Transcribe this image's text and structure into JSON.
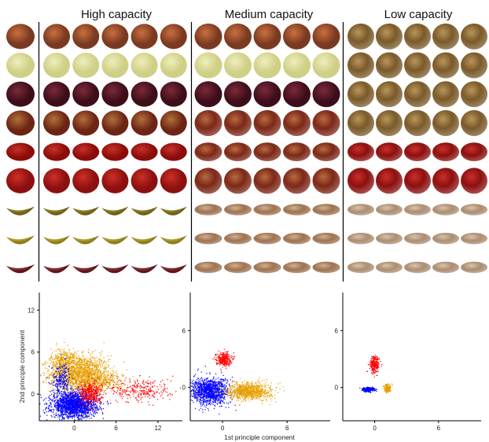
{
  "panels": [
    {
      "title": "High capacity"
    },
    {
      "title": "Medium capacity"
    },
    {
      "title": "Low capacity"
    }
  ],
  "image_grid": {
    "rows": [
      {
        "name": "brown-apple",
        "base": "#7a3a22",
        "accent": "#c9703e"
      },
      {
        "name": "yellow-apple",
        "base": "#cfcf86",
        "accent": "#eeeebc"
      },
      {
        "name": "dark-red-apple",
        "base": "#3e0d1a",
        "accent": "#7a2a3a"
      },
      {
        "name": "mottled-apple",
        "base": "#6c2415",
        "accent": "#b27038"
      },
      {
        "name": "wide-red-fruit",
        "base": "#8a0d0a",
        "accent": "#c8302a"
      },
      {
        "name": "red-apple",
        "base": "#8c1010",
        "accent": "#cc3026"
      },
      {
        "name": "curved-banana",
        "base": "#6d5d18",
        "accent": "#a6942d"
      },
      {
        "name": "banana",
        "base": "#8c7a16",
        "accent": "#c9b742"
      },
      {
        "name": "red-banana",
        "base": "#5a141c",
        "accent": "#a04848"
      }
    ],
    "columns_per_panel": [
      6,
      5,
      5
    ],
    "medium_lowres": {
      "apple": {
        "base": "#7c2818",
        "accent": "#b86a40"
      },
      "banana": {
        "base": "#8c5a34",
        "accent": "#c9a47a"
      }
    },
    "low_lowres": {
      "brown_sphere": {
        "base": "#7a5a2a",
        "accent": "#b8955a"
      },
      "red_sphere": {
        "base": "#8c1010",
        "accent": "#c8302a"
      },
      "banana_blur": {
        "base": "#9c7a5a",
        "accent": "#d4b89c"
      }
    }
  },
  "chart_data": [
    {
      "type": "scatter",
      "panel": "High capacity",
      "xlabel": "",
      "ylabel": "2nd principle component",
      "xlim": [
        -5,
        15.5
      ],
      "ylim": [
        -3.8,
        14.5
      ],
      "xticks": [
        0,
        6,
        12
      ],
      "yticks": [
        0,
        6,
        12
      ],
      "series": [
        {
          "color": "#e69f00",
          "clusters": [
            {
              "cx": 0.8,
              "cy": 2.9,
              "sx": 2.1,
              "sy": 1.3,
              "n": 1700
            },
            {
              "cx": -1.5,
              "cy": 4.8,
              "sx": 0.9,
              "sy": 0.9,
              "n": 300
            },
            {
              "cx": 4.3,
              "cy": 1.7,
              "sx": 1.7,
              "sy": 0.7,
              "n": 250
            }
          ]
        },
        {
          "color": "#0000ff",
          "clusters": [
            {
              "cx": 0.0,
              "cy": -1.6,
              "sx": 1.6,
              "sy": 0.9,
              "n": 1900
            },
            {
              "cx": -1.8,
              "cy": 2.0,
              "sx": 0.7,
              "sy": 1.2,
              "n": 250
            }
          ]
        },
        {
          "color": "#ff0000",
          "clusters": [
            {
              "cx": 2.3,
              "cy": 0.1,
              "sx": 0.8,
              "sy": 0.8,
              "n": 400
            },
            {
              "cx": 9.5,
              "cy": 0.6,
              "sx": 2.3,
              "sy": 0.9,
              "n": 300
            }
          ]
        }
      ]
    },
    {
      "type": "scatter",
      "panel": "Medium capacity",
      "xlabel": "1st principle component",
      "ylabel": "",
      "xlim": [
        -3,
        10
      ],
      "ylim": [
        -3.5,
        10
      ],
      "xticks": [
        0,
        6
      ],
      "yticks": [
        0,
        6
      ],
      "series": [
        {
          "color": "#ff0000",
          "clusters": [
            {
              "cx": 0.1,
              "cy": 3.0,
              "sx": 0.35,
              "sy": 0.35,
              "n": 300
            }
          ]
        },
        {
          "color": "#0000ff",
          "clusters": [
            {
              "cx": -1.2,
              "cy": -0.4,
              "sx": 0.9,
              "sy": 0.7,
              "n": 1200
            }
          ]
        },
        {
          "color": "#e69f00",
          "clusters": [
            {
              "cx": 2.5,
              "cy": -0.4,
              "sx": 1.0,
              "sy": 0.45,
              "n": 900
            }
          ]
        }
      ]
    },
    {
      "type": "scatter",
      "panel": "Low capacity",
      "xlabel": "",
      "ylabel": "",
      "xlim": [
        -3,
        10
      ],
      "ylim": [
        -3.5,
        10
      ],
      "xticks": [
        0,
        6
      ],
      "yticks": [
        0,
        6
      ],
      "series": [
        {
          "color": "#ff0000",
          "clusters": [
            {
              "cx": 0.0,
              "cy": 2.4,
              "sx": 0.22,
              "sy": 0.45,
              "n": 250
            }
          ]
        },
        {
          "color": "#0000ff",
          "clusters": [
            {
              "cx": -0.6,
              "cy": -0.2,
              "sx": 0.3,
              "sy": 0.12,
              "n": 250
            }
          ]
        },
        {
          "color": "#e69f00",
          "clusters": [
            {
              "cx": 1.2,
              "cy": -0.1,
              "sx": 0.15,
              "sy": 0.2,
              "n": 200
            }
          ]
        }
      ]
    }
  ]
}
